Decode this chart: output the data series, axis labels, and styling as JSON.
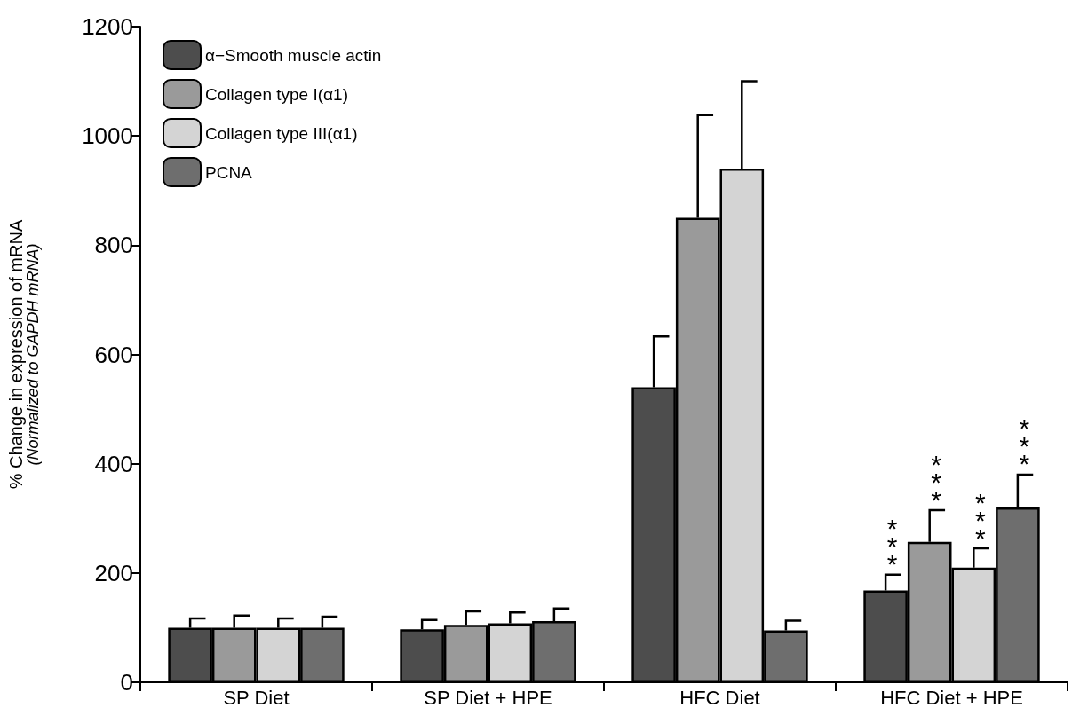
{
  "chart_data": {
    "type": "bar",
    "ylabel": "% Change in expression of mRNA\n(Normalized to GAPDH mRNA)",
    "categories": [
      "SP Diet",
      "SP Diet + HPE",
      "HFC Diet",
      "HFC Diet + HPE"
    ],
    "series": [
      {
        "name": "α−Smooth muscle actin",
        "color": "#4d4d4d",
        "values": [
          100,
          97,
          540,
          168
        ],
        "errors": [
          [
            100,
            117
          ],
          [
            97,
            114
          ],
          [
            540,
            633
          ],
          [
            168,
            197
          ]
        ]
      },
      {
        "name": "Collagen type I(α1)",
        "color": "#9a9a9a",
        "values": [
          100,
          105,
          850,
          257
        ],
        "errors": [
          [
            100,
            122
          ],
          [
            105,
            130
          ],
          [
            850,
            1038
          ],
          [
            257,
            315
          ]
        ]
      },
      {
        "name": "Collagen type III(α1)",
        "color": "#d4d4d4",
        "values": [
          100,
          108,
          940,
          210
        ],
        "errors": [
          [
            100,
            117
          ],
          [
            108,
            128
          ],
          [
            940,
            1100
          ],
          [
            210,
            245
          ]
        ]
      },
      {
        "name": "PCNA",
        "color": "#6e6e6e",
        "values": [
          100,
          112,
          95,
          320
        ],
        "errors": [
          [
            100,
            120
          ],
          [
            112,
            135
          ],
          [
            95,
            113
          ],
          [
            320,
            380
          ]
        ]
      }
    ],
    "annotations": [
      "***",
      "***",
      "***",
      "***"
    ],
    "ylim": [
      0,
      1200
    ],
    "yticks": [
      0,
      200,
      400,
      600,
      800,
      1000,
      1200
    ],
    "grid": false,
    "legend": "top left"
  }
}
